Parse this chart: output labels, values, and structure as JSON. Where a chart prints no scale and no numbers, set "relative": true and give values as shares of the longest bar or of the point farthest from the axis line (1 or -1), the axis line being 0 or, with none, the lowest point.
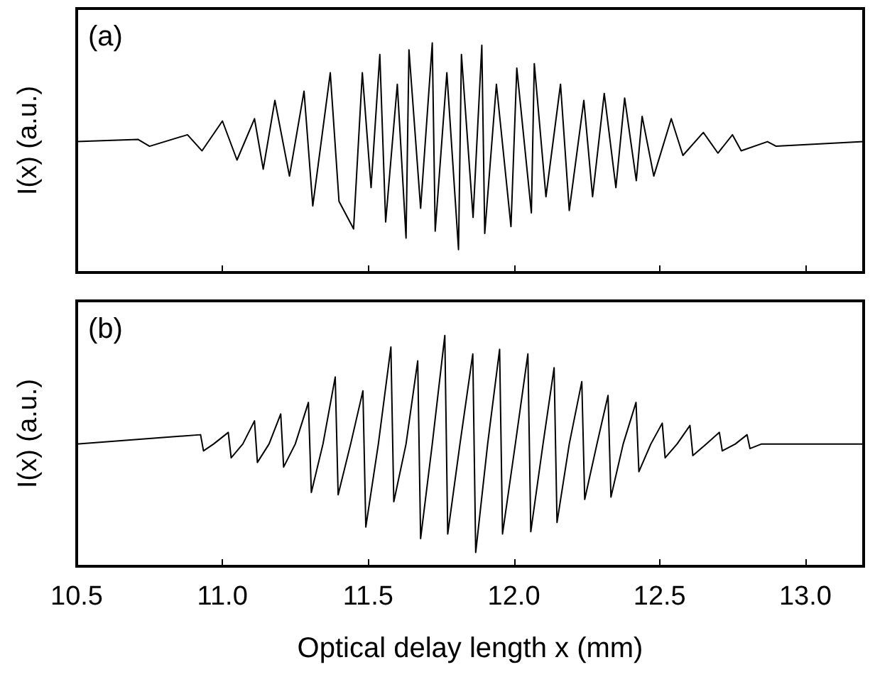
{
  "chart_data": [
    {
      "type": "line",
      "relative": true,
      "ylabel": "I(x) (a.u.)",
      "annotations": [
        "(a)"
      ],
      "xlim": [
        10.5,
        13.2
      ],
      "xticks": [
        10.5,
        11,
        11.5,
        12,
        12.5,
        13
      ],
      "tick_labels": false,
      "grid": false,
      "marker": "none",
      "line_style": "solid",
      "series": [
        {
          "color": "#000000",
          "x": [
            10.5,
            10.71,
            10.75,
            10.88,
            10.93,
            11.0,
            11.05,
            11.11,
            11.14,
            11.18,
            11.23,
            11.28,
            11.31,
            11.37,
            11.4,
            11.45,
            11.48,
            11.51,
            11.54,
            11.56,
            11.6,
            11.63,
            11.64,
            11.68,
            11.72,
            11.73,
            11.77,
            11.81,
            11.82,
            11.86,
            11.89,
            11.9,
            11.94,
            11.99,
            12.01,
            12.06,
            12.07,
            12.11,
            12.16,
            12.19,
            12.24,
            12.27,
            12.31,
            12.35,
            12.38,
            12.42,
            12.44,
            12.48,
            12.54,
            12.58,
            12.65,
            12.7,
            12.75,
            12.78,
            12.87,
            12.9,
            13.2
          ],
          "values": [
            0.57,
            0.58,
            0.55,
            0.6,
            0.53,
            0.66,
            0.49,
            0.67,
            0.45,
            0.75,
            0.42,
            0.79,
            0.29,
            0.87,
            0.31,
            0.19,
            0.87,
            0.37,
            0.95,
            0.22,
            0.82,
            0.15,
            0.97,
            0.28,
            1,
            0.18,
            0.87,
            0.1,
            0.95,
            0.24,
            0.99,
            0.17,
            0.82,
            0.2,
            0.89,
            0.26,
            0.91,
            0.33,
            0.82,
            0.27,
            0.75,
            0.33,
            0.78,
            0.37,
            0.76,
            0.4,
            0.68,
            0.42,
            0.67,
            0.51,
            0.61,
            0.52,
            0.6,
            0.53,
            0.57,
            0.55,
            0.57
          ]
        }
      ]
    },
    {
      "type": "line",
      "relative": true,
      "ylabel": "I(x) (a.u.)",
      "xlabel": "Optical delay length x (mm)",
      "annotations": [
        "(b)"
      ],
      "xlim": [
        10.5,
        13.2
      ],
      "xticks": [
        10.5,
        {
          "value": 11,
          "label": "11.0"
        },
        11.5,
        {
          "value": 12,
          "label": "12.0"
        },
        12.5,
        {
          "value": 13,
          "label": "13.0"
        }
      ],
      "tick_labels": "x",
      "grid": false,
      "marker": "none",
      "line_style": "solid",
      "series": [
        {
          "color": "#000000",
          "x": [
            10.5,
            10.925,
            10.935,
            10.97,
            11.02,
            11.03,
            11.07,
            11.11,
            11.12,
            11.16,
            11.2,
            11.21,
            11.25,
            11.295,
            11.305,
            11.345,
            11.387,
            11.397,
            11.44,
            11.482,
            11.492,
            11.535,
            11.578,
            11.588,
            11.63,
            11.67,
            11.68,
            11.72,
            11.763,
            11.773,
            11.815,
            11.859,
            11.869,
            11.91,
            11.951,
            11.961,
            12.005,
            12.048,
            12.058,
            12.1,
            12.138,
            12.148,
            12.19,
            12.233,
            12.243,
            12.285,
            12.323,
            12.333,
            12.375,
            12.419,
            12.429,
            12.47,
            12.509,
            12.519,
            12.56,
            12.604,
            12.614,
            12.66,
            12.705,
            12.715,
            12.76,
            12.8,
            12.81,
            12.85,
            13.2
          ],
          "values": [
            0.53,
            0.57,
            0.5,
            0.53,
            0.58,
            0.47,
            0.53,
            0.63,
            0.45,
            0.53,
            0.66,
            0.43,
            0.53,
            0.71,
            0.32,
            0.53,
            0.82,
            0.31,
            0.53,
            0.76,
            0.17,
            0.53,
            0.95,
            0.28,
            0.53,
            0.89,
            0.12,
            0.53,
            1,
            0.14,
            0.53,
            0.92,
            0.06,
            0.53,
            0.94,
            0.14,
            0.53,
            0.92,
            0.15,
            0.53,
            0.86,
            0.19,
            0.53,
            0.8,
            0.29,
            0.53,
            0.74,
            0.3,
            0.53,
            0.71,
            0.41,
            0.53,
            0.62,
            0.47,
            0.53,
            0.61,
            0.48,
            0.53,
            0.58,
            0.5,
            0.53,
            0.57,
            0.51,
            0.53,
            0.53
          ]
        }
      ]
    }
  ]
}
